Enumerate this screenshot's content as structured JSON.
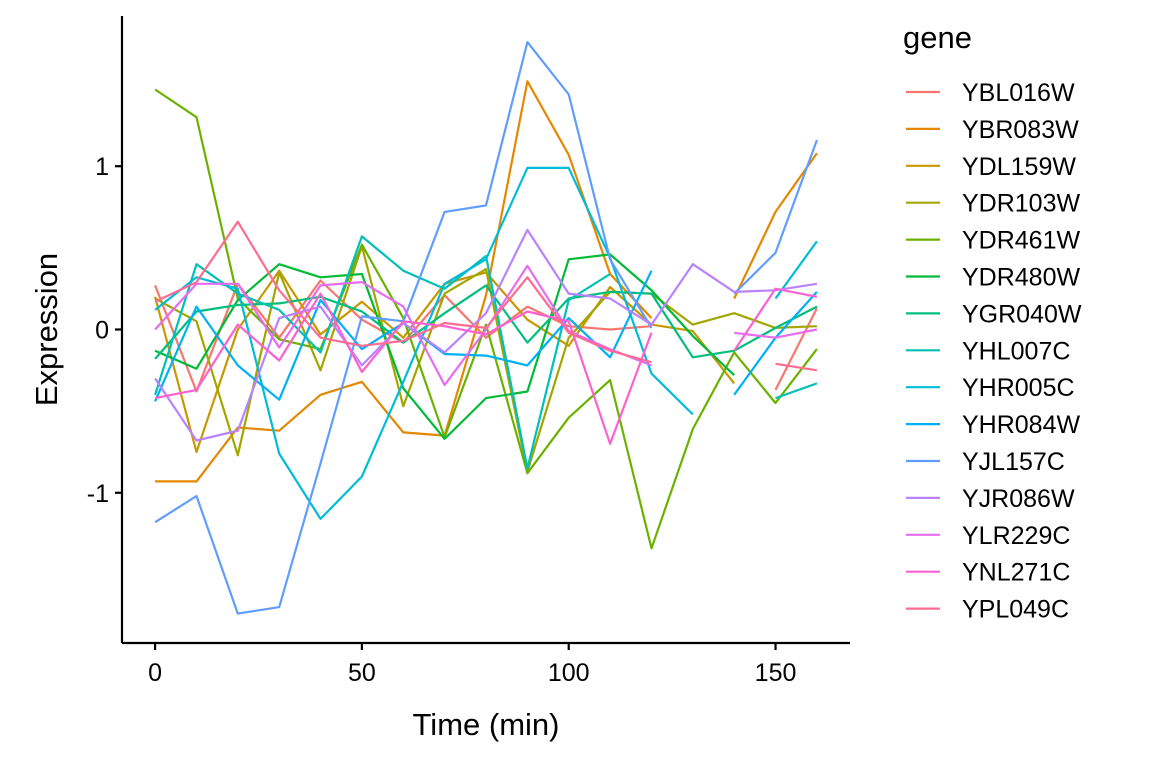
{
  "chart_data": {
    "type": "line",
    "xlabel": "Time (min)",
    "ylabel": "Expression",
    "xlim": [
      -8,
      168
    ],
    "ylim": [
      -1.92,
      1.92
    ],
    "x_ticks": [
      0,
      50,
      100,
      150
    ],
    "y_ticks": [
      -1,
      0,
      1
    ],
    "x_tick_labels": [
      "0",
      "50",
      "100",
      "150"
    ],
    "y_tick_labels": [
      "-1",
      "0",
      "1"
    ],
    "grid": false,
    "legend": {
      "title": "gene",
      "position": "right"
    },
    "x": [
      0,
      10,
      20,
      30,
      40,
      50,
      60,
      70,
      80,
      90,
      100,
      110,
      120,
      130,
      140,
      150,
      160
    ],
    "series": [
      {
        "name": "YBL016W",
        "color": "#F8766D",
        "values": [
          0.27,
          -0.38,
          0.28,
          -0.05,
          0.3,
          0.06,
          -0.08,
          0.21,
          -0.05,
          0.14,
          0.02,
          0.0,
          0.02,
          null,
          null,
          -0.37,
          0.13
        ]
      },
      {
        "name": "YBR083W",
        "color": "#E58700",
        "values": [
          -0.93,
          -0.93,
          -0.6,
          -0.62,
          -0.4,
          -0.32,
          -0.63,
          -0.65,
          0.21,
          1.52,
          1.07,
          0.34,
          0.07,
          null,
          0.19,
          0.72,
          1.08
        ]
      },
      {
        "name": "YDL159W",
        "color": "#C99800",
        "values": [
          0.2,
          -0.75,
          0.0,
          0.36,
          -0.03,
          0.17,
          -0.05,
          0.28,
          0.35,
          0.06,
          -0.1,
          0.26,
          0.03,
          -0.01,
          -0.33,
          null,
          null
        ]
      },
      {
        "name": "YDR103W",
        "color": "#A3A500",
        "values": [
          0.19,
          0.05,
          -0.77,
          0.35,
          -0.25,
          0.51,
          -0.47,
          0.22,
          0.37,
          -0.87,
          -0.05,
          0.23,
          0.22,
          0.03,
          0.1,
          0.01,
          0.02
        ]
      },
      {
        "name": "YDR461W",
        "color": "#6BB100",
        "values": [
          1.47,
          1.3,
          0.19,
          -0.06,
          -0.12,
          0.52,
          0.07,
          -0.66,
          0.03,
          -0.88,
          -0.54,
          -0.31,
          -1.34,
          -0.61,
          -0.14,
          -0.45,
          -0.12
        ]
      },
      {
        "name": "YDR480W",
        "color": "#00BA38",
        "values": [
          -0.13,
          -0.24,
          0.18,
          0.4,
          0.32,
          0.34,
          -0.36,
          -0.67,
          -0.42,
          -0.38,
          0.43,
          0.46,
          0.24,
          -0.04,
          -0.28,
          null,
          null
        ]
      },
      {
        "name": "YGR040W",
        "color": "#00BF7D",
        "values": [
          -0.18,
          0.11,
          0.15,
          0.16,
          0.2,
          0.11,
          -0.08,
          0.1,
          0.27,
          -0.08,
          0.19,
          0.23,
          0.22,
          -0.17,
          -0.13,
          0.01,
          0.14
        ]
      },
      {
        "name": "YHL007C",
        "color": "#00C0B8",
        "values": [
          -0.4,
          0.4,
          0.22,
          0.12,
          -0.14,
          0.57,
          0.36,
          0.25,
          0.45,
          -0.85,
          0.18,
          0.34,
          null,
          null,
          null,
          -0.42,
          -0.33
        ]
      },
      {
        "name": "YHR005C",
        "color": "#00BCD8",
        "values": [
          0.12,
          0.32,
          0.25,
          -0.76,
          -1.16,
          -0.9,
          -0.32,
          0.28,
          0.43,
          0.99,
          0.99,
          0.44,
          -0.27,
          -0.52,
          null,
          0.19,
          0.54
        ]
      },
      {
        "name": "YHR084W",
        "color": "#00B0F6",
        "values": [
          -0.44,
          0.14,
          -0.22,
          -0.43,
          0.18,
          -0.12,
          0.04,
          -0.15,
          -0.16,
          -0.22,
          0.07,
          -0.17,
          0.36,
          null,
          -0.4,
          -0.05,
          0.23
        ]
      },
      {
        "name": "YJL157C",
        "color": "#619CFF",
        "values": [
          -1.18,
          -1.02,
          -1.74,
          -1.7,
          -0.82,
          0.08,
          0.05,
          0.72,
          0.76,
          1.76,
          1.44,
          0.43,
          0.01,
          null,
          0.22,
          0.47,
          1.16
        ]
      },
      {
        "name": "YJR086W",
        "color": "#B983FF",
        "values": [
          -0.3,
          -0.68,
          -0.62,
          0.07,
          0.14,
          -0.22,
          0.04,
          -0.14,
          0.1,
          0.61,
          0.22,
          0.19,
          0.03,
          0.4,
          0.23,
          0.24,
          0.28
        ]
      },
      {
        "name": "YLR229C",
        "color": "#E76BF3",
        "values": [
          0.0,
          0.28,
          0.28,
          -0.11,
          0.27,
          0.29,
          0.14,
          -0.34,
          0.0,
          0.39,
          -0.01,
          -0.12,
          -0.22,
          null,
          -0.02,
          -0.05,
          0.0
        ]
      },
      {
        "name": "YNL271C",
        "color": "#FD61D1",
        "values": [
          -0.42,
          -0.37,
          0.03,
          -0.19,
          0.22,
          -0.26,
          0.05,
          0.02,
          -0.03,
          0.11,
          0.05,
          -0.7,
          -0.02,
          null,
          -0.13,
          0.25,
          0.2
        ]
      },
      {
        "name": "YPL049C",
        "color": "#FF6C91",
        "values": [
          0.17,
          0.29,
          0.66,
          0.24,
          -0.05,
          -0.1,
          -0.07,
          0.04,
          0.01,
          0.32,
          -0.02,
          -0.13,
          -0.2,
          null,
          null,
          -0.21,
          -0.25
        ]
      }
    ]
  }
}
